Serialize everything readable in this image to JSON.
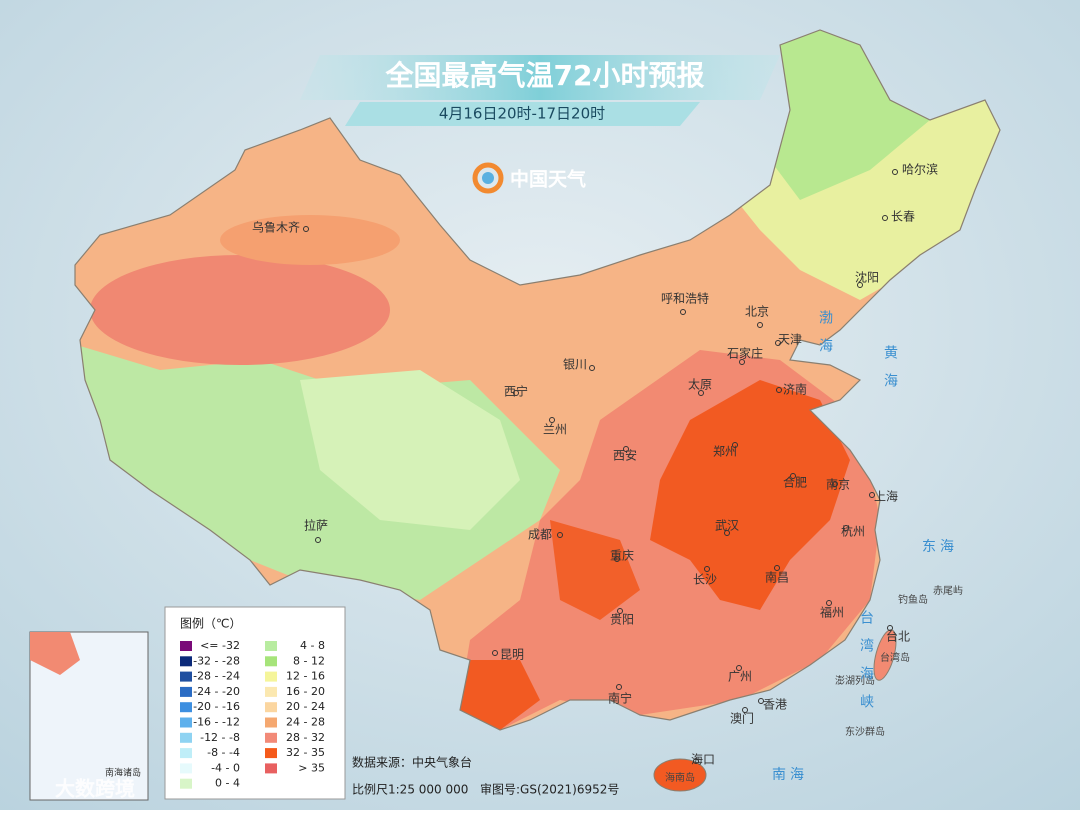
{
  "header": {
    "title": "全国最高气温72小时预报",
    "subtitle": "4月16日20时-17日20时",
    "logo": "中国天气"
  },
  "cities": [
    {
      "label": "乌鲁木齐"
    },
    {
      "label": "拉萨"
    },
    {
      "label": "西宁"
    },
    {
      "label": "兰州"
    },
    {
      "label": "银川"
    },
    {
      "label": "呼和浩特"
    },
    {
      "label": "北京"
    },
    {
      "label": "天津"
    },
    {
      "label": "石家庄"
    },
    {
      "label": "太原"
    },
    {
      "label": "济南"
    },
    {
      "label": "郑州"
    },
    {
      "label": "西安"
    },
    {
      "label": "成都"
    },
    {
      "label": "重庆"
    },
    {
      "label": "武汉"
    },
    {
      "label": "合肥"
    },
    {
      "label": "南京"
    },
    {
      "label": "上海"
    },
    {
      "label": "杭州"
    },
    {
      "label": "长沙"
    },
    {
      "label": "南昌"
    },
    {
      "label": "贵阳"
    },
    {
      "label": "福州"
    },
    {
      "label": "昆明"
    },
    {
      "label": "南宁"
    },
    {
      "label": "广州"
    },
    {
      "label": "香港"
    },
    {
      "label": "澳门"
    },
    {
      "label": "海口"
    },
    {
      "label": "台北"
    },
    {
      "label": "哈尔滨"
    },
    {
      "label": "长春"
    },
    {
      "label": "沈阳"
    }
  ],
  "islands": [
    {
      "label": "钓鱼岛"
    },
    {
      "label": "赤尾屿"
    },
    {
      "label": "台湾岛"
    },
    {
      "label": "澎湖列岛"
    },
    {
      "label": "东沙群岛"
    },
    {
      "label": "海南岛"
    }
  ],
  "seas": [
    {
      "label": "渤海"
    },
    {
      "label": "黄海"
    },
    {
      "label": "东海"
    },
    {
      "label": "台湾海峡"
    },
    {
      "label": "南海"
    }
  ],
  "legend": {
    "title": "图例（℃）",
    "items": [
      {
        "label": "<= -32",
        "color": "#7a0a78"
      },
      {
        "label": "-32 - -28",
        "color": "#0c2a7a"
      },
      {
        "label": "-28 - -24",
        "color": "#1f4fa0"
      },
      {
        "label": "-24 - -20",
        "color": "#2b6cc4"
      },
      {
        "label": "-20 - -16",
        "color": "#3d8fe0"
      },
      {
        "label": "-16 - -12",
        "color": "#5eb0ec"
      },
      {
        "label": "-12 - -8",
        "color": "#8fd3f2"
      },
      {
        "label": "-8 - -4",
        "color": "#bfeef8"
      },
      {
        "label": "-4 - 0",
        "color": "#e6fafc"
      },
      {
        "label": "0 - 4",
        "color": "#d8f5c8"
      },
      {
        "label": "4 - 8",
        "color": "#b8eca0"
      },
      {
        "label": "8 - 12",
        "color": "#a6e47a"
      },
      {
        "label": "12 - 16",
        "color": "#f5f59a"
      },
      {
        "label": "16 - 20",
        "color": "#fbe8b0"
      },
      {
        "label": "20 - 24",
        "color": "#fbd6a0"
      },
      {
        "label": "24 - 28",
        "color": "#f5a870"
      },
      {
        "label": "28 - 32",
        "color": "#f28a78"
      },
      {
        "label": "32 - 35",
        "color": "#f55a1a"
      },
      {
        "label": "> 35",
        "color": "#e86060"
      }
    ]
  },
  "footer": {
    "source": "数据来源：中央气象台",
    "scale": "比例尺1:25 000 000",
    "review": "审图号:GS(2021)6952号"
  },
  "inset": {
    "label": "南海诸岛"
  },
  "watermark": "大数跨境"
}
